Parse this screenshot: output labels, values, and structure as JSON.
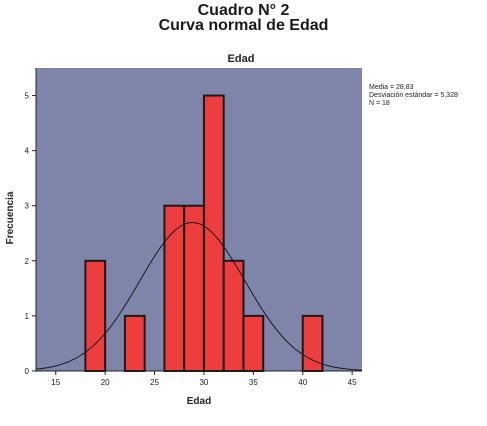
{
  "heading": {
    "line1": "Cuadro N° 2",
    "line2": "Curva normal de Edad"
  },
  "stats": {
    "media": "Media = 28,83",
    "desviacion": "Desviación estándar = 5,328",
    "n": "N = 18"
  },
  "chart_data": {
    "type": "bar",
    "title": "Edad",
    "xlabel": "Edad",
    "ylabel": "Frecuencia",
    "xlim": [
      13,
      46
    ],
    "ylim": [
      0,
      5.5
    ],
    "x_ticks": [
      15,
      20,
      25,
      30,
      35,
      40,
      45
    ],
    "y_ticks": [
      0,
      1,
      2,
      3,
      4,
      5
    ],
    "bins": [
      {
        "x0": 18,
        "x1": 20,
        "count": 2
      },
      {
        "x0": 22,
        "x1": 24,
        "count": 1
      },
      {
        "x0": 26,
        "x1": 28,
        "count": 3
      },
      {
        "x0": 28,
        "x1": 30,
        "count": 3
      },
      {
        "x0": 30,
        "x1": 32,
        "count": 5
      },
      {
        "x0": 32,
        "x1": 34,
        "count": 2
      },
      {
        "x0": 34,
        "x1": 36,
        "count": 1
      },
      {
        "x0": 40,
        "x1": 42,
        "count": 1
      }
    ],
    "normal_curve": {
      "mean": 28.83,
      "sd": 5.328,
      "n": 18,
      "bin_width": 2
    },
    "colors": {
      "plot_background": "#7e85a8",
      "bar_fill": "#ee3d3d",
      "bar_stroke": "#1a1a1a",
      "curve": "#1a1a1a"
    }
  }
}
